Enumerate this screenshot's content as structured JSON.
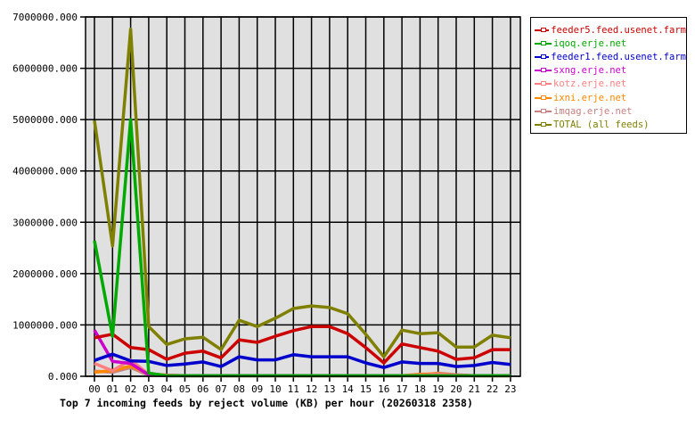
{
  "chart_data": {
    "type": "line",
    "title": "Top 7 incoming feeds by reject volume (KB) per hour (20260318 2358)",
    "xlabel": "",
    "ylabel": "",
    "ylim": [
      0,
      7000000
    ],
    "grid": true,
    "legend_position": "right",
    "y_ticks": [
      "0.000",
      "1000000.000",
      "2000000.000",
      "3000000.000",
      "4000000.000",
      "5000000.000",
      "6000000.000",
      "7000000.000"
    ],
    "categories": [
      "00",
      "01",
      "02",
      "03",
      "04",
      "05",
      "06",
      "07",
      "08",
      "09",
      "10",
      "11",
      "12",
      "13",
      "14",
      "15",
      "16",
      "17",
      "18",
      "19",
      "20",
      "21",
      "22",
      "23"
    ],
    "series": [
      {
        "name": "feeder5.feed.usenet.farm",
        "color": "#cc0000",
        "values": [
          750000,
          820000,
          560000,
          520000,
          330000,
          450000,
          490000,
          360000,
          710000,
          660000,
          780000,
          890000,
          970000,
          970000,
          830000,
          560000,
          260000,
          630000,
          560000,
          490000,
          330000,
          360000,
          520000,
          520000
        ]
      },
      {
        "name": "iqoq.erje.net",
        "color": "#00aa00",
        "values": [
          2640000,
          780000,
          5000000,
          60000,
          10000,
          10000,
          10000,
          10000,
          10000,
          10000,
          10000,
          10000,
          10000,
          10000,
          10000,
          10000,
          10000,
          10000,
          10000,
          10000,
          10000,
          10000,
          10000,
          10000
        ]
      },
      {
        "name": "feeder1.feed.usenet.farm",
        "color": "#0000cc",
        "values": [
          310000,
          430000,
          300000,
          290000,
          210000,
          240000,
          280000,
          190000,
          380000,
          320000,
          320000,
          420000,
          380000,
          380000,
          380000,
          260000,
          170000,
          280000,
          250000,
          250000,
          190000,
          210000,
          270000,
          230000
        ]
      },
      {
        "name": "sxng.erje.net",
        "color": "#cc00cc",
        "values": [
          900000,
          290000,
          250000,
          30000,
          10000,
          10000,
          10000,
          10000,
          10000,
          10000,
          10000,
          10000,
          10000,
          10000,
          10000,
          10000,
          10000,
          10000,
          10000,
          10000,
          10000,
          10000,
          10000,
          10000
        ]
      },
      {
        "name": "kotz.erje.net",
        "color": "#ff8080",
        "values": [
          250000,
          110000,
          320000,
          40000,
          20000,
          10000,
          10000,
          10000,
          10000,
          10000,
          10000,
          10000,
          10000,
          10000,
          10000,
          10000,
          10000,
          10000,
          20000,
          40000,
          20000,
          10000,
          10000,
          10000
        ]
      },
      {
        "name": "ixni.erje.net",
        "color": "#ff8800",
        "values": [
          80000,
          110000,
          200000,
          50000,
          20000,
          10000,
          10000,
          10000,
          10000,
          10000,
          10000,
          10000,
          10000,
          10000,
          10000,
          10000,
          10000,
          10000,
          40000,
          50000,
          20000,
          10000,
          10000,
          10000
        ]
      },
      {
        "name": "imqag.erje.net",
        "color": "#c88080",
        "values": [
          100000,
          80000,
          170000,
          20000,
          20000,
          10000,
          10000,
          10000,
          10000,
          10000,
          10000,
          10000,
          10000,
          10000,
          10000,
          10000,
          10000,
          10000,
          20000,
          60000,
          30000,
          10000,
          10000,
          10000
        ]
      },
      {
        "name": "TOTAL (all feeds)",
        "color": "#808000",
        "values": [
          4980000,
          2540000,
          6760000,
          970000,
          620000,
          730000,
          760000,
          520000,
          1090000,
          970000,
          1130000,
          1320000,
          1370000,
          1340000,
          1220000,
          820000,
          380000,
          900000,
          830000,
          850000,
          570000,
          570000,
          800000,
          750000
        ]
      }
    ]
  }
}
